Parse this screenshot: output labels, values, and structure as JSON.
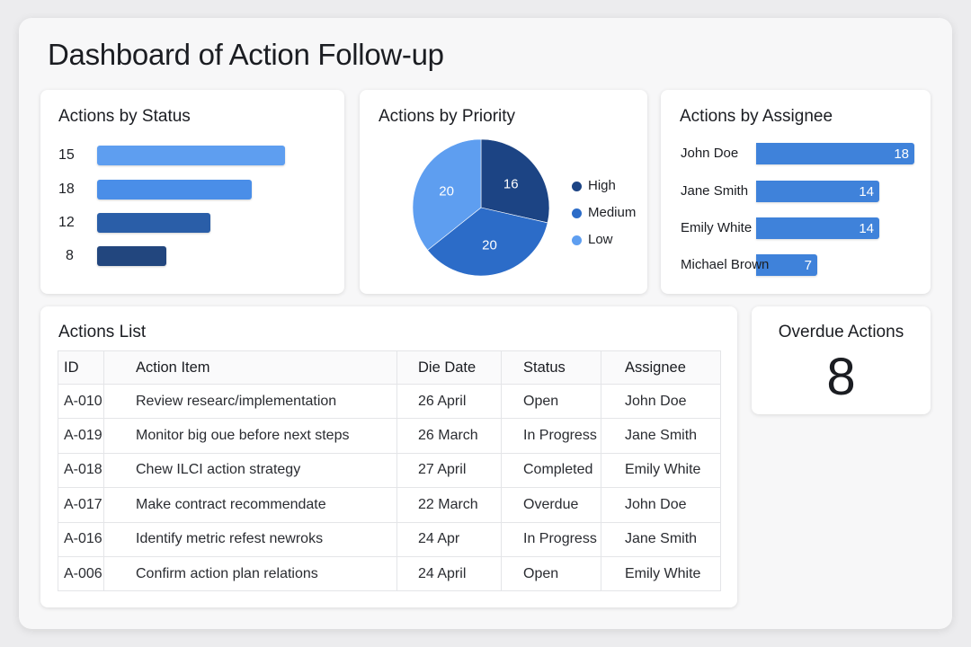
{
  "page": {
    "title": "Dashboard of Action Follow-up"
  },
  "status_card": {
    "title": "Actions by Status",
    "chart_data": {
      "type": "bar",
      "orientation": "horizontal",
      "title": "Actions by Status",
      "values": [
        15,
        18,
        12,
        8
      ],
      "bar_colors": [
        "#5e9ef0",
        "#4a8ee8",
        "#2a5ea8",
        "#22467e"
      ]
    }
  },
  "priority_card": {
    "title": "Actions by Priority",
    "chart_data": {
      "type": "pie",
      "title": "Actions by Priority",
      "categories": [
        "High",
        "Medium",
        "Low"
      ],
      "values": [
        16,
        20,
        20
      ],
      "colors": [
        "#1c4484",
        "#2c6cc8",
        "#5e9ef0"
      ],
      "legend_position": "right"
    }
  },
  "assignee_card": {
    "title": "Actions by Assignee",
    "chart_data": {
      "type": "bar",
      "orientation": "horizontal",
      "title": "Actions by Assignee",
      "categories": [
        "John Doe",
        "Jane Smith",
        "Emily White",
        "Michael Brown"
      ],
      "values": [
        18,
        14,
        14,
        7
      ],
      "bar_color": "#3f82da"
    }
  },
  "actions_list": {
    "title": "Actions List",
    "columns": [
      "ID",
      "Action Item",
      "Die Date",
      "Status",
      "Assignee"
    ],
    "rows": [
      [
        "A-010",
        "Review researc/implementation",
        "26 April",
        "Open",
        "John Doe"
      ],
      [
        "A-019",
        "Monitor big oue before next steps",
        "26 March",
        "In Progress",
        "Jane Smith"
      ],
      [
        "A-018",
        "Chew ILCI action strategy",
        "27 April",
        "Completed",
        "Emily White"
      ],
      [
        "A-017",
        "Make contract recommendate",
        "22 March",
        "Overdue",
        "John Doe"
      ],
      [
        "A-016",
        "Identify metric refest newroks",
        "24 Apr",
        "In Progress",
        "Jane Smith"
      ],
      [
        "A-006",
        "Confirm action plan relations",
        "24 April",
        "Open",
        "Emily White"
      ]
    ]
  },
  "overdue_card": {
    "title": "Overdue Actions",
    "value": "8"
  }
}
